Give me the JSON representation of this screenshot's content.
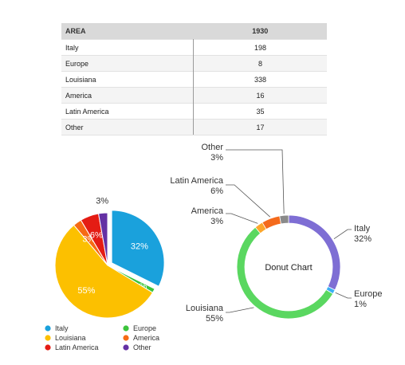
{
  "table": {
    "header_area": "AREA",
    "header_year": "1930",
    "rows": [
      {
        "area": "Italy",
        "value": "198"
      },
      {
        "area": "Europe",
        "value": "8"
      },
      {
        "area": "Louisiana",
        "value": "338"
      },
      {
        "area": "America",
        "value": "16"
      },
      {
        "area": "Latin America",
        "value": "35"
      },
      {
        "area": "Other",
        "value": "17"
      }
    ]
  },
  "chart_data": [
    {
      "type": "pie",
      "categories": [
        "Italy",
        "Europe",
        "Louisiana",
        "America",
        "Latin America",
        "Other"
      ],
      "values": [
        198,
        8,
        338,
        16,
        35,
        17
      ],
      "percent_labels": [
        "32%",
        "1%",
        "55%",
        "3%",
        "6%",
        "3%"
      ],
      "colors": [
        "#1aa1dc",
        "#3cc43c",
        "#fcc000",
        "#f66a14",
        "#e41c14",
        "#6431a4"
      ],
      "exploded": "Italy",
      "legend_placement": "bottom",
      "legend": [
        "Italy",
        "Europe",
        "Louisiana",
        "America",
        "Latin America",
        "Other"
      ]
    },
    {
      "type": "pie",
      "subtype": "donut",
      "center_label": "Donut Chart",
      "categories": [
        "Italy",
        "Europe",
        "Louisiana",
        "America",
        "Latin America",
        "Other"
      ],
      "values": [
        198,
        8,
        338,
        16,
        35,
        17
      ],
      "percent_labels": [
        "32%",
        "1%",
        "55%",
        "3%",
        "6%",
        "3%"
      ],
      "colors": [
        "#7e6ed4",
        "#3ab0f4",
        "#5ad760",
        "#fca62c",
        "#f46a1c",
        "#8a8a8a"
      ]
    }
  ]
}
